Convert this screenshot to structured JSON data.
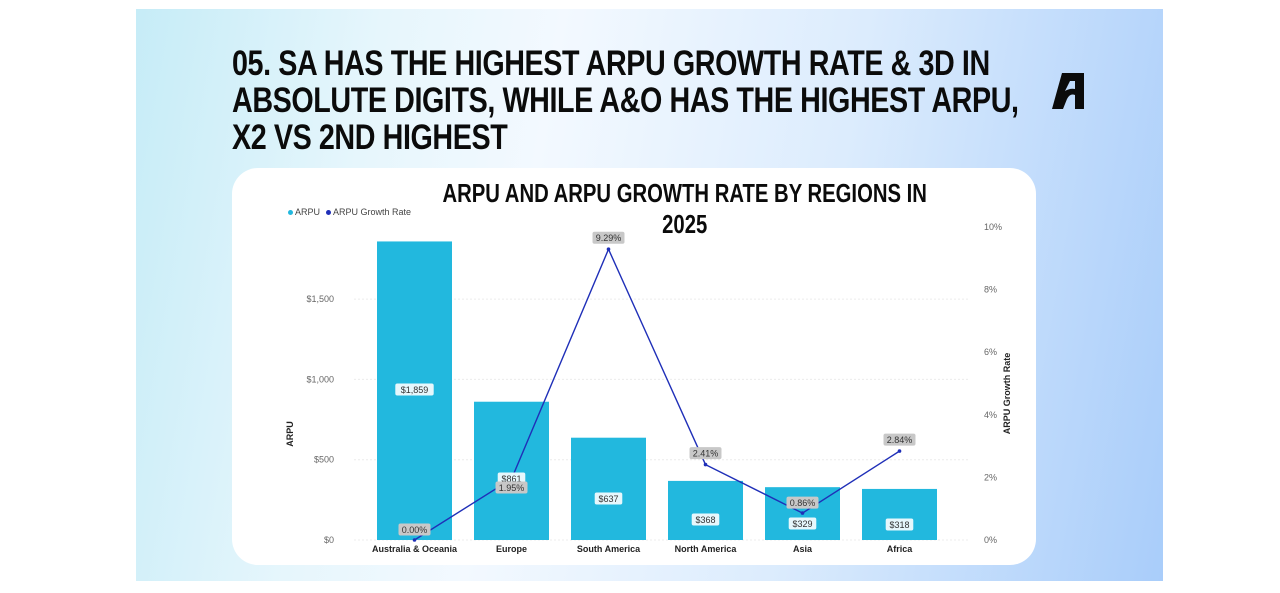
{
  "slide": {
    "headline": "05.  SA has the highest ARPU growth rate & 3d in absolute digits, while A&O has the highest ARPU, x2 vs 2nd highest",
    "logo_icon": "stylized-a-logo-icon"
  },
  "colors": {
    "bar": "#22b8de",
    "line": "#1f2fb8",
    "bar_label_bg": "#e6f7fc",
    "rate_label_bg": "#c8c8c8",
    "grid": "#ececec"
  },
  "chart_data": {
    "type": "bar+line",
    "title": "ARPU and ARPU Growth Rate by Regions in 2025",
    "legend": [
      "ARPU",
      "ARPU Growth Rate"
    ],
    "legend_position": "top-left",
    "categories": [
      "Australia & Oceania",
      "Europe",
      "South America",
      "North America",
      "Asia",
      "Africa"
    ],
    "series": [
      {
        "name": "ARPU",
        "type": "bar",
        "axis": "left",
        "values": [
          1859,
          861,
          637,
          368,
          329,
          318
        ],
        "labels": [
          "$1,859",
          "$861",
          "$637",
          "$368",
          "$329",
          "$318"
        ]
      },
      {
        "name": "ARPU Growth Rate",
        "type": "line",
        "axis": "right",
        "values": [
          0.0,
          1.95,
          9.29,
          2.41,
          0.86,
          2.84
        ],
        "labels": [
          "0.00%",
          "1.95%",
          "9.29%",
          "2.41%",
          "0.86%",
          "2.84%"
        ]
      }
    ],
    "ylabel": "ARPU",
    "ylim": [
      0,
      1950
    ],
    "yticks": [
      0,
      500,
      1000,
      1500
    ],
    "ytick_labels": [
      "$0",
      "$500",
      "$1,000",
      "$1,500"
    ],
    "y2label": "ARPU Growth Rate",
    "y2lim": [
      0,
      10
    ],
    "y2ticks": [
      0,
      2,
      4,
      6,
      8,
      10
    ],
    "y2tick_labels": [
      "0%",
      "2%",
      "4%",
      "6%",
      "8%",
      "10%"
    ],
    "grid": true
  }
}
